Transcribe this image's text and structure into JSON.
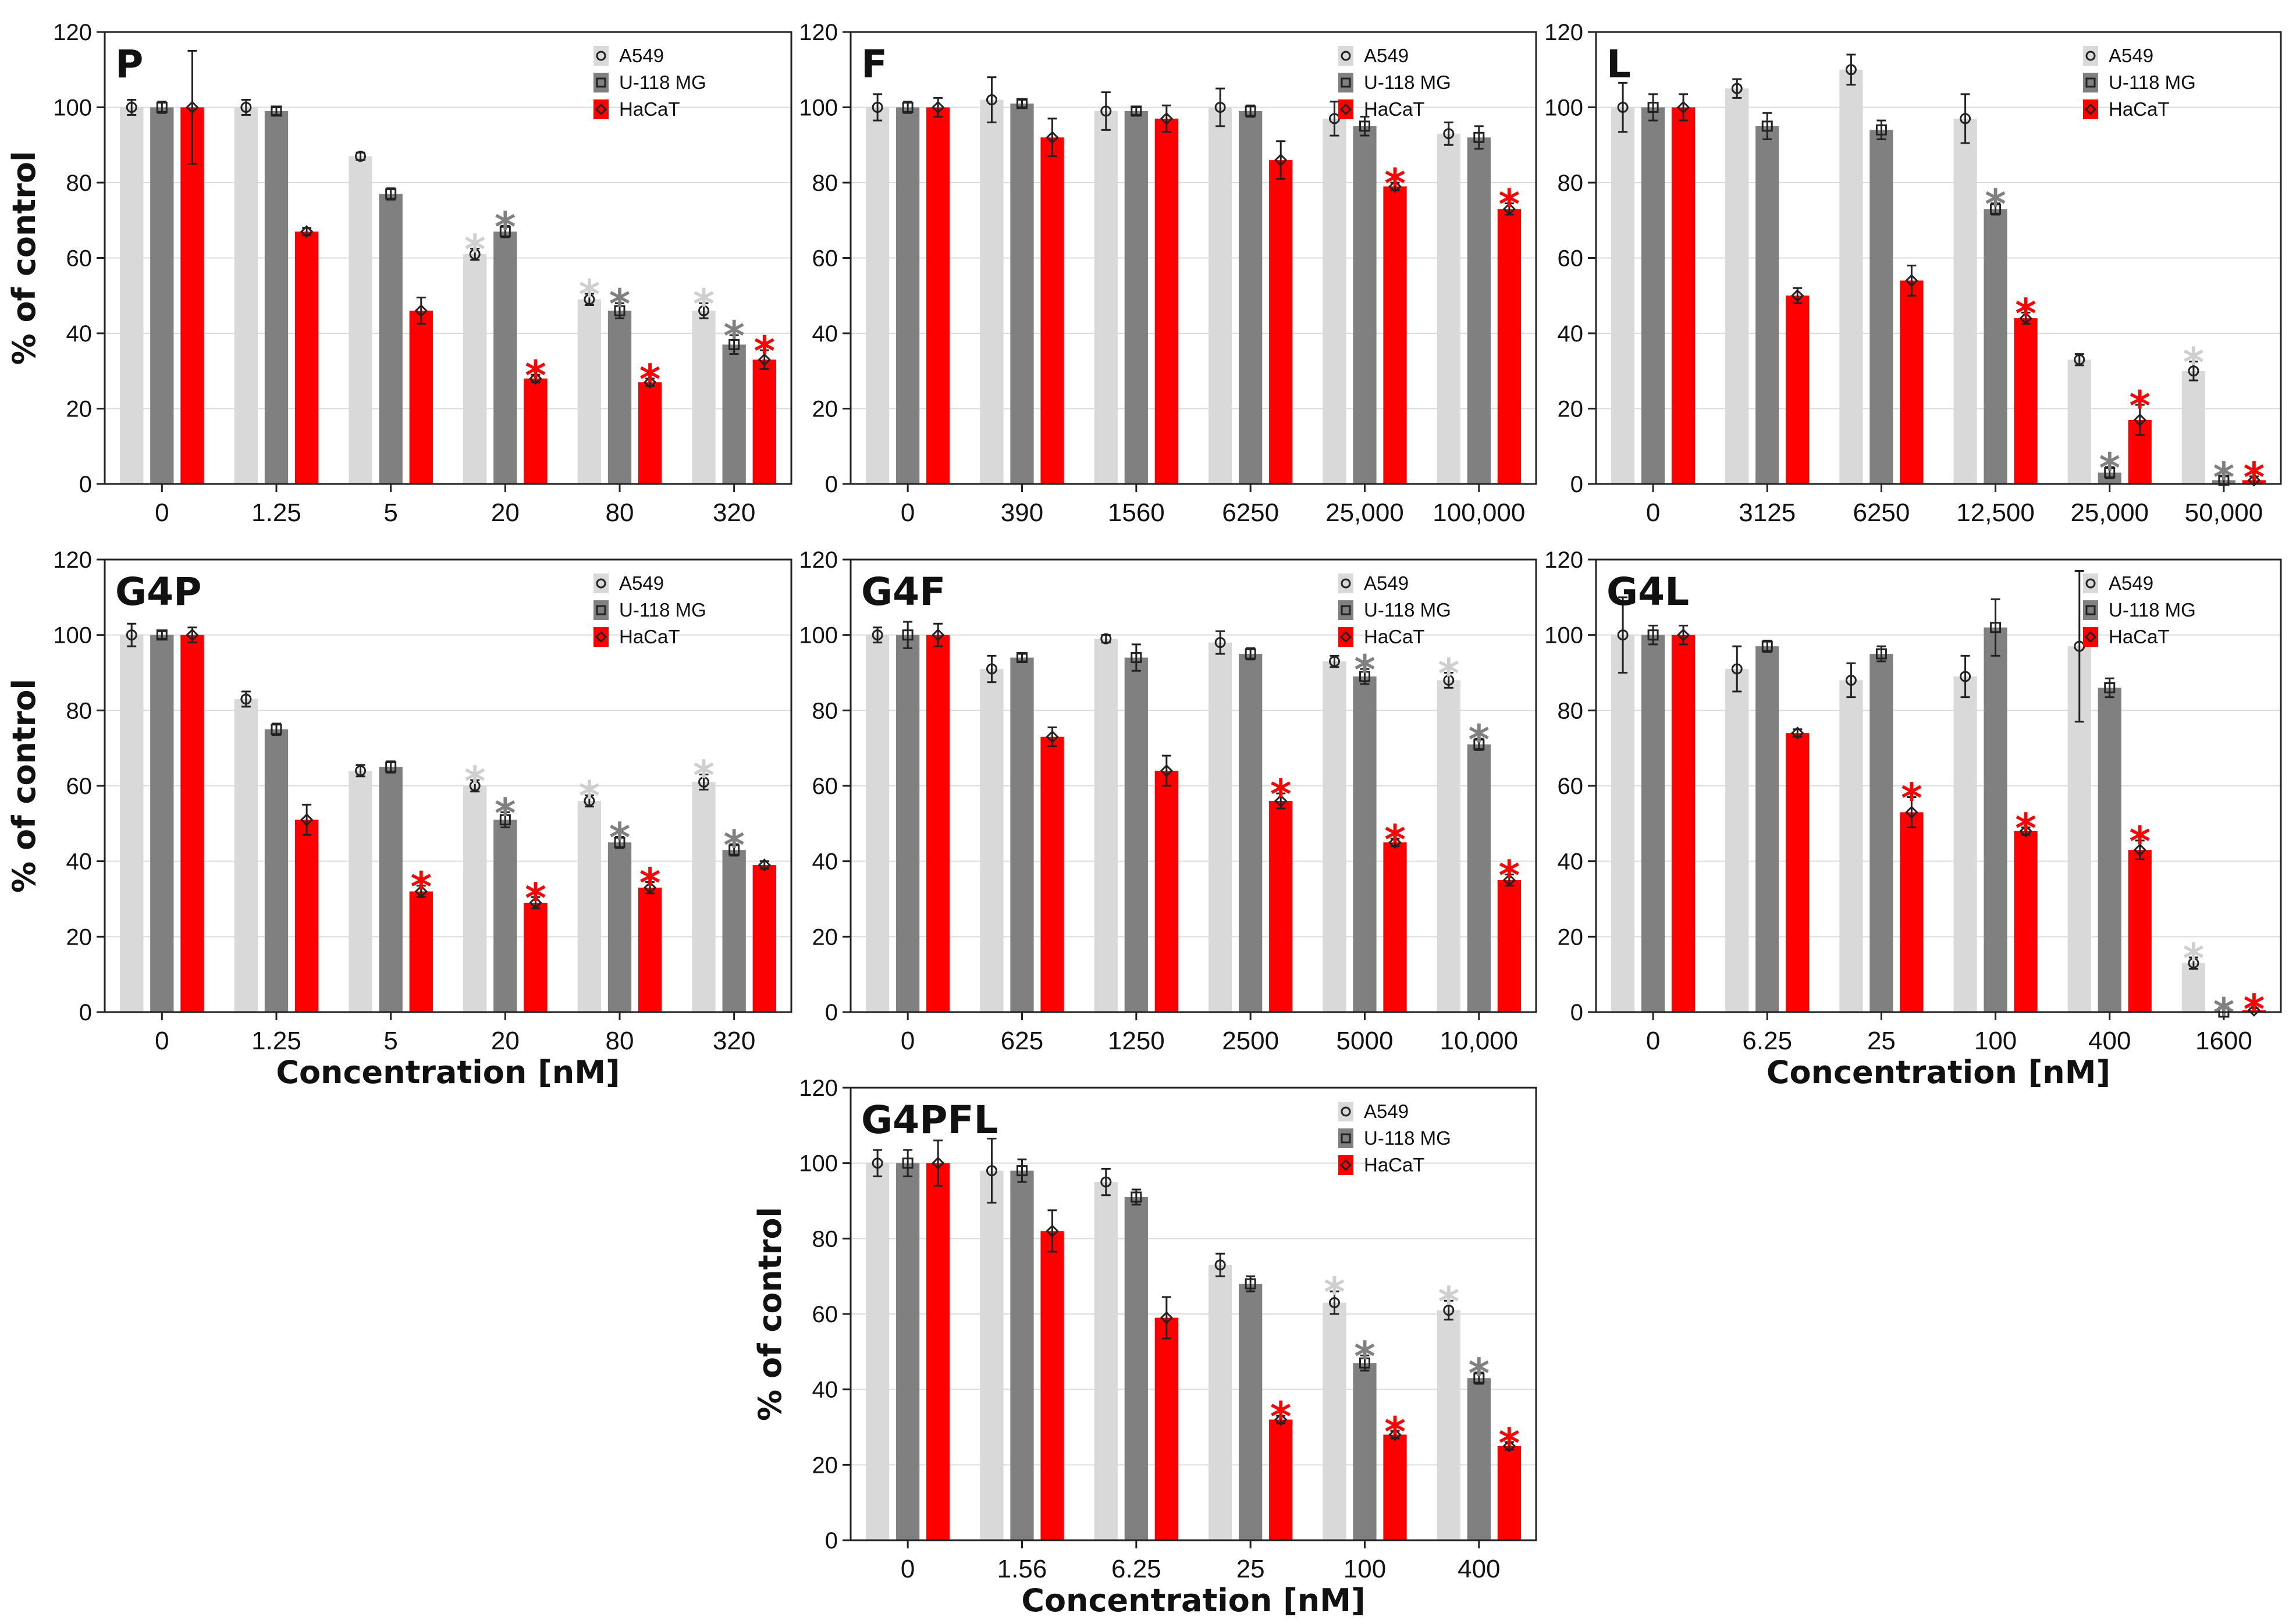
{
  "figure": {
    "xlabel": "Concentration [nM]",
    "ylabel": "% of control"
  },
  "colors": {
    "A549": "#d9d9d9",
    "U-118 MG": "#808080",
    "HaCaT": "#ff0000",
    "star_A549": "#cfcfcf",
    "star_U-118 MG": "#808080",
    "star_HaCaT": "#ff0000"
  },
  "chart_data": [
    {
      "type": "bar",
      "title": "P",
      "categories": [
        "0",
        "1.25",
        "5",
        "20",
        "80",
        "320"
      ],
      "ylim": [
        0,
        120
      ],
      "yticks": [
        0,
        20,
        40,
        60,
        80,
        100,
        120
      ],
      "ylabel": "% of control",
      "xlabel": "",
      "legend": "top-right",
      "legend_entries": [
        "A549",
        "U-118 MG",
        "HaCaT"
      ],
      "series": [
        {
          "name": "A549",
          "values": [
            100,
            100,
            87,
            61,
            49,
            46
          ],
          "errors": [
            2,
            2,
            1,
            1.5,
            1.5,
            2
          ],
          "significant": [
            false,
            false,
            false,
            true,
            true,
            true
          ]
        },
        {
          "name": "U-118 MG",
          "values": [
            100,
            99,
            77,
            67,
            46,
            37
          ],
          "errors": [
            1.5,
            1,
            1.5,
            1.5,
            2,
            2.5
          ],
          "significant": [
            false,
            false,
            false,
            true,
            true,
            true
          ]
        },
        {
          "name": "HaCaT",
          "values": [
            100,
            67,
            46,
            28,
            27,
            33
          ],
          "errors": [
            15,
            1,
            3.5,
            1,
            1,
            2.5
          ],
          "significant": [
            false,
            false,
            false,
            true,
            true,
            true
          ]
        }
      ]
    },
    {
      "type": "bar",
      "title": "F",
      "categories": [
        "0",
        "390",
        "1560",
        "6250",
        "25,000",
        "100,000"
      ],
      "ylim": [
        0,
        120
      ],
      "yticks": [
        0,
        20,
        40,
        60,
        80,
        100,
        120
      ],
      "ylabel": "",
      "xlabel": "",
      "legend": "top-right",
      "legend_entries": [
        "A549",
        "U-118 MG",
        "HaCaT"
      ],
      "series": [
        {
          "name": "A549",
          "values": [
            100,
            102,
            99,
            100,
            97,
            93
          ],
          "errors": [
            3.5,
            6,
            5,
            5,
            4.5,
            3
          ],
          "significant": [
            false,
            false,
            false,
            false,
            false,
            false
          ]
        },
        {
          "name": "U-118 MG",
          "values": [
            100,
            101,
            99,
            99,
            95,
            92
          ],
          "errors": [
            1.5,
            1,
            1,
            1.5,
            2.5,
            3
          ],
          "significant": [
            false,
            false,
            false,
            false,
            false,
            false
          ]
        },
        {
          "name": "HaCaT",
          "values": [
            100,
            92,
            97,
            86,
            79,
            73
          ],
          "errors": [
            2.5,
            5,
            3.5,
            5,
            1,
            1.5
          ],
          "significant": [
            false,
            false,
            false,
            false,
            true,
            true
          ]
        }
      ]
    },
    {
      "type": "bar",
      "title": "L",
      "categories": [
        "0",
        "3125",
        "6250",
        "12,500",
        "25,000",
        "50,000"
      ],
      "ylim": [
        0,
        120
      ],
      "yticks": [
        0,
        20,
        40,
        60,
        80,
        100,
        120
      ],
      "ylabel": "",
      "xlabel": "",
      "legend": "top-right",
      "legend_entries": [
        "A549",
        "U-118 MG",
        "HaCaT"
      ],
      "series": [
        {
          "name": "A549",
          "values": [
            100,
            105,
            110,
            97,
            33,
            30
          ],
          "errors": [
            6.5,
            2.5,
            4,
            6.5,
            1.5,
            2.5
          ],
          "significant": [
            false,
            false,
            false,
            false,
            false,
            true
          ]
        },
        {
          "name": "U-118 MG",
          "values": [
            100,
            95,
            94,
            73,
            3,
            1
          ],
          "errors": [
            3.5,
            3.5,
            2.5,
            1.5,
            1.5,
            1
          ],
          "significant": [
            false,
            false,
            false,
            true,
            true,
            true
          ]
        },
        {
          "name": "HaCaT",
          "values": [
            100,
            50,
            54,
            44,
            17,
            1
          ],
          "errors": [
            3.5,
            2,
            4,
            1.5,
            4,
            1
          ],
          "significant": [
            false,
            false,
            false,
            true,
            true,
            true
          ]
        }
      ]
    },
    {
      "type": "bar",
      "title": "G4P",
      "categories": [
        "0",
        "1.25",
        "5",
        "20",
        "80",
        "320"
      ],
      "ylim": [
        0,
        120
      ],
      "yticks": [
        0,
        20,
        40,
        60,
        80,
        100,
        120
      ],
      "ylabel": "% of control",
      "xlabel": "Concentration [nM]",
      "legend": "top-right",
      "legend_entries": [
        "A549",
        "U-118 MG",
        "HaCaT"
      ],
      "series": [
        {
          "name": "A549",
          "values": [
            100,
            83,
            64,
            60,
            56,
            61
          ],
          "errors": [
            3,
            2,
            1.5,
            1.5,
            1.5,
            2
          ],
          "significant": [
            false,
            false,
            false,
            true,
            true,
            true
          ]
        },
        {
          "name": "U-118 MG",
          "values": [
            100,
            75,
            65,
            51,
            45,
            43
          ],
          "errors": [
            1,
            1.5,
            1.5,
            2,
            1.5,
            1.5
          ],
          "significant": [
            false,
            false,
            false,
            true,
            true,
            true
          ]
        },
        {
          "name": "HaCaT",
          "values": [
            100,
            51,
            32,
            29,
            33,
            39
          ],
          "errors": [
            2,
            4,
            1.5,
            1.5,
            1.5,
            1
          ],
          "significant": [
            false,
            false,
            true,
            true,
            true,
            false
          ]
        }
      ]
    },
    {
      "type": "bar",
      "title": "G4F",
      "categories": [
        "0",
        "625",
        "1250",
        "2500",
        "5000",
        "10,000"
      ],
      "ylim": [
        0,
        120
      ],
      "yticks": [
        0,
        20,
        40,
        60,
        80,
        100,
        120
      ],
      "ylabel": "",
      "xlabel": "",
      "legend": "top-right",
      "legend_entries": [
        "A549",
        "U-118 MG",
        "HaCaT"
      ],
      "series": [
        {
          "name": "A549",
          "values": [
            100,
            91,
            99,
            98,
            93,
            88
          ],
          "errors": [
            2,
            3.5,
            1,
            3,
            1.5,
            2
          ],
          "significant": [
            false,
            false,
            false,
            false,
            false,
            true
          ]
        },
        {
          "name": "U-118 MG",
          "values": [
            100,
            94,
            94,
            95,
            89,
            71
          ],
          "errors": [
            3.5,
            1,
            3.5,
            1.5,
            2,
            1.5
          ],
          "significant": [
            false,
            false,
            false,
            false,
            true,
            true
          ]
        },
        {
          "name": "HaCaT",
          "values": [
            100,
            73,
            64,
            56,
            45,
            35
          ],
          "errors": [
            3,
            2.5,
            4,
            2,
            1,
            1.5
          ],
          "significant": [
            false,
            false,
            false,
            true,
            true,
            true
          ]
        }
      ]
    },
    {
      "type": "bar",
      "title": "G4L",
      "categories": [
        "0",
        "6.25",
        "25",
        "100",
        "400",
        "1600"
      ],
      "ylim": [
        0,
        120
      ],
      "yticks": [
        0,
        20,
        40,
        60,
        80,
        100,
        120
      ],
      "ylabel": "",
      "xlabel": "Concentration [nM]",
      "legend": "top-right",
      "legend_entries": [
        "A549",
        "U-118 MG",
        "HaCaT"
      ],
      "series": [
        {
          "name": "A549",
          "values": [
            100,
            91,
            88,
            89,
            97,
            13
          ],
          "errors": [
            10,
            6,
            4.5,
            5.5,
            20,
            1.5
          ],
          "significant": [
            false,
            false,
            false,
            false,
            false,
            true
          ]
        },
        {
          "name": "U-118 MG",
          "values": [
            100,
            97,
            95,
            102,
            86,
            0
          ],
          "errors": [
            2.5,
            1.5,
            2,
            7.5,
            2.5,
            0
          ],
          "significant": [
            false,
            false,
            false,
            false,
            false,
            true
          ]
        },
        {
          "name": "HaCaT",
          "values": [
            100,
            74,
            53,
            48,
            43,
            0.5
          ],
          "errors": [
            2.5,
            1,
            4,
            1,
            2.5,
            0.5
          ],
          "significant": [
            false,
            false,
            true,
            true,
            true,
            true
          ]
        }
      ]
    },
    {
      "type": "bar",
      "title": "G4PFL",
      "categories": [
        "0",
        "1.56",
        "6.25",
        "25",
        "100",
        "400"
      ],
      "ylim": [
        0,
        120
      ],
      "yticks": [
        0,
        20,
        40,
        60,
        80,
        100,
        120
      ],
      "ylabel": "% of control",
      "xlabel": "Concentration [nM]",
      "legend": "top-right",
      "legend_entries": [
        "A549",
        "U-118 MG",
        "HaCaT"
      ],
      "series": [
        {
          "name": "A549",
          "values": [
            100,
            98,
            95,
            73,
            63,
            61
          ],
          "errors": [
            3.5,
            8.5,
            3.5,
            3,
            3,
            2.5
          ],
          "significant": [
            false,
            false,
            false,
            false,
            true,
            true
          ]
        },
        {
          "name": "U-118 MG",
          "values": [
            100,
            98,
            91,
            68,
            47,
            43
          ],
          "errors": [
            3.5,
            3,
            2,
            2,
            2,
            1.5
          ],
          "significant": [
            false,
            false,
            false,
            false,
            true,
            true
          ]
        },
        {
          "name": "HaCaT",
          "values": [
            100,
            82,
            59,
            32,
            28,
            25
          ],
          "errors": [
            6,
            5.5,
            5.5,
            1,
            1,
            1
          ],
          "significant": [
            false,
            false,
            false,
            true,
            true,
            true
          ]
        }
      ]
    }
  ]
}
